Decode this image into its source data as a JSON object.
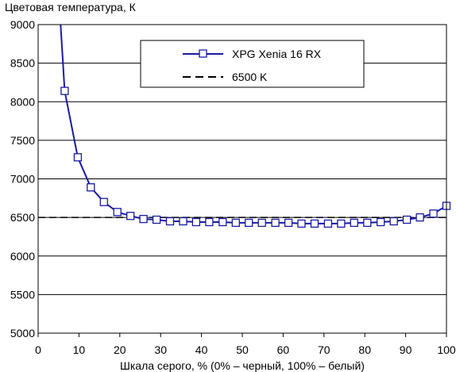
{
  "chart_data": {
    "type": "line",
    "title": "",
    "ylabel": "Цветовая температура, К",
    "xlabel": "Шкала серого, % (0% – черный, 100% – белый)",
    "xlim": [
      0,
      100
    ],
    "ylim": [
      5000,
      9000
    ],
    "x_ticks": [
      0,
      10,
      20,
      30,
      40,
      50,
      60,
      70,
      80,
      90,
      100
    ],
    "y_ticks": [
      5000,
      5500,
      6000,
      6500,
      7000,
      7500,
      8000,
      8500,
      9000
    ],
    "grid": "horizontal",
    "legend_position": "top-center",
    "series": [
      {
        "name": "XPG Xenia 16 RX",
        "color": "#1a1aa6",
        "marker": "square",
        "line_start": {
          "x": 5.5,
          "y": 9000
        },
        "x": [
          6.5,
          9.7,
          12.9,
          16.1,
          19.4,
          22.6,
          25.8,
          29.0,
          32.3,
          35.5,
          38.7,
          41.9,
          45.2,
          48.4,
          51.6,
          54.8,
          58.1,
          61.3,
          64.5,
          67.7,
          71.0,
          74.2,
          77.4,
          80.6,
          83.9,
          87.1,
          90.3,
          93.5,
          96.8,
          100
        ],
        "y": [
          8140,
          7280,
          6890,
          6700,
          6570,
          6520,
          6480,
          6470,
          6450,
          6450,
          6440,
          6440,
          6440,
          6430,
          6430,
          6430,
          6430,
          6430,
          6420,
          6420,
          6420,
          6420,
          6430,
          6430,
          6440,
          6450,
          6470,
          6500,
          6550,
          6650
        ]
      },
      {
        "name": "6500 K",
        "color": "#000000",
        "style": "dashed",
        "x": [
          0,
          100
        ],
        "y": [
          6500,
          6500
        ]
      }
    ]
  }
}
